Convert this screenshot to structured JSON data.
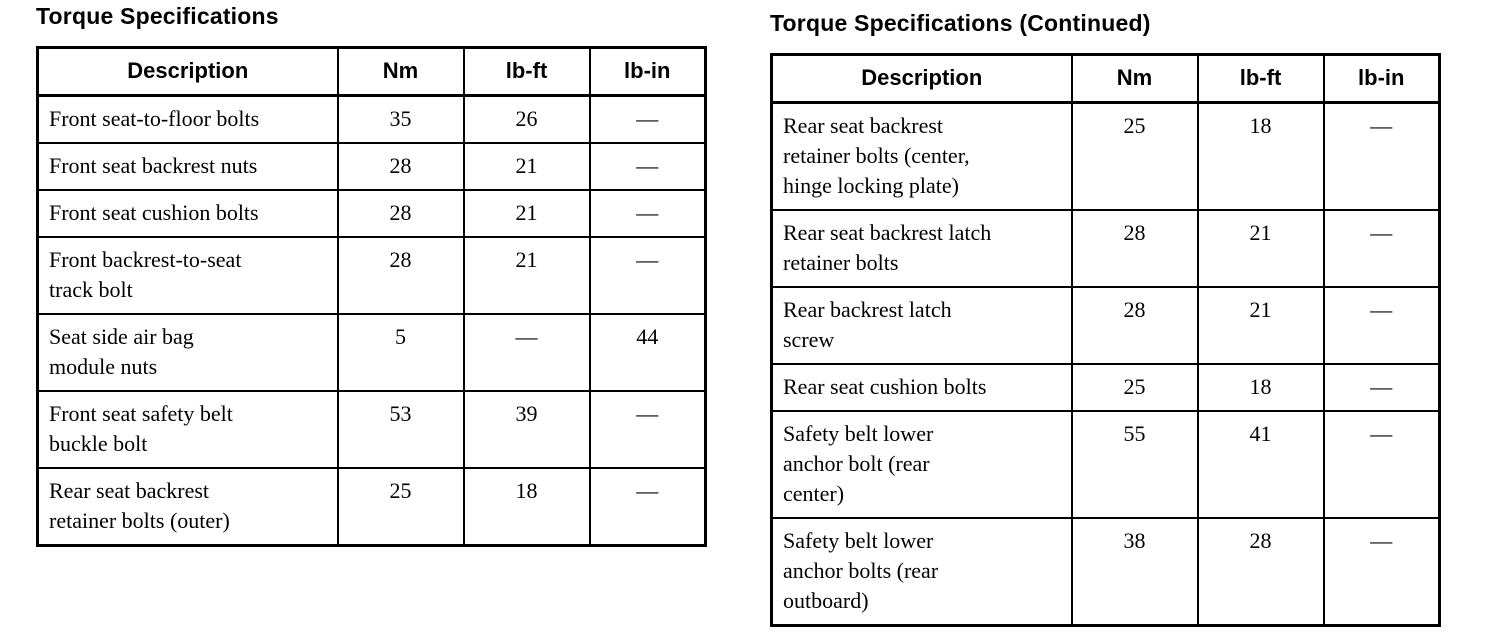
{
  "page": {
    "background_color": "#ffffff",
    "text_color": "#000000",
    "border_color": "#000000"
  },
  "tables": [
    {
      "title": "Torque Specifications",
      "columns": [
        "Description",
        "Nm",
        "lb-ft",
        "lb-in"
      ],
      "rows": [
        [
          "Front seat-to-floor bolts",
          "35",
          "26",
          "—"
        ],
        [
          "Front seat backrest nuts",
          "28",
          "21",
          "—"
        ],
        [
          "Front seat cushion bolts",
          "28",
          "21",
          "—"
        ],
        [
          "Front backrest-to-seat\ntrack bolt",
          "28",
          "21",
          "—"
        ],
        [
          "Seat side air bag\nmodule nuts",
          "5",
          "—",
          "44"
        ],
        [
          "Front seat safety belt\nbuckle bolt",
          "53",
          "39",
          "—"
        ],
        [
          "Rear seat backrest\nretainer bolts (outer)",
          "25",
          "18",
          "—"
        ]
      ]
    },
    {
      "title": "Torque Specifications (Continued)",
      "columns": [
        "Description",
        "Nm",
        "lb-ft",
        "lb-in"
      ],
      "rows": [
        [
          "Rear seat backrest\nretainer bolts (center,\nhinge locking plate)",
          "25",
          "18",
          "—"
        ],
        [
          "Rear seat backrest latch\nretainer bolts",
          "28",
          "21",
          "—"
        ],
        [
          "Rear backrest latch\nscrew",
          "28",
          "21",
          "—"
        ],
        [
          "Rear seat cushion bolts",
          "25",
          "18",
          "—"
        ],
        [
          "Safety belt lower\nanchor bolt (rear\ncenter)",
          "55",
          "41",
          "—"
        ],
        [
          "Safety belt lower\nanchor bolts (rear\noutboard)",
          "38",
          "28",
          "—"
        ]
      ]
    }
  ]
}
